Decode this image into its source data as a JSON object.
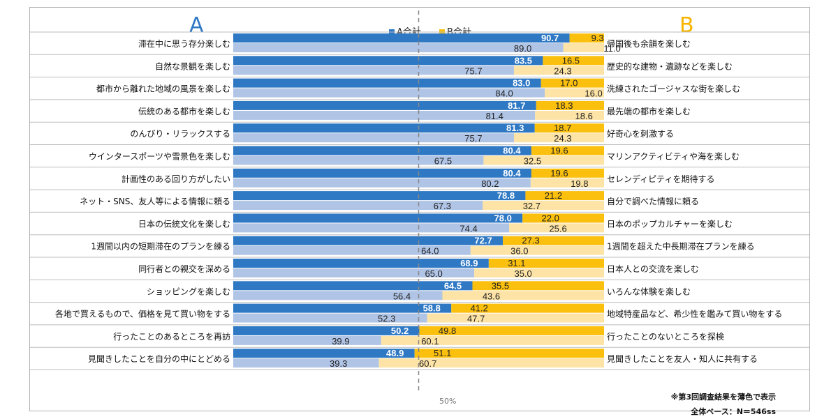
{
  "header": {
    "a": "A",
    "b": "B"
  },
  "legend": {
    "a": "A合計",
    "b": "B合計"
  },
  "axis": {
    "mid_label": "50%"
  },
  "notes": {
    "line1": "※第3回調査結果を薄色で表示",
    "line2": "全体ベース：N＝546ss"
  },
  "colors": {
    "a_current": "#2f78c4",
    "b_current": "#fbbf0d",
    "a_prev": "#b0c4e6",
    "b_prev": "#fde3a5",
    "header_a": "#2f78c4",
    "header_b": "#f7b500",
    "midline": "#888888"
  },
  "chart_data": {
    "type": "bar",
    "orientation": "horizontal-diverging",
    "xlim": [
      0,
      100
    ],
    "series": [
      {
        "name": "A合計",
        "side": "A"
      },
      {
        "name": "B合計",
        "side": "B"
      }
    ],
    "rows": [
      {
        "a_label": "滞在中に思う存分楽しむ",
        "b_label": "帰国後も余韻を楽しむ",
        "a": 90.7,
        "b": 9.3,
        "a_prev": 89.0,
        "b_prev": 11.0
      },
      {
        "a_label": "自然な景観を楽しむ",
        "b_label": "歴史的な建物・遺跡などを楽しむ",
        "a": 83.5,
        "b": 16.5,
        "a_prev": 75.7,
        "b_prev": 24.3
      },
      {
        "a_label": "都市から離れた地域の風景を楽しむ",
        "b_label": "洗練されたゴージャスな街を楽しむ",
        "a": 83.0,
        "b": 17.0,
        "a_prev": 84.0,
        "b_prev": 16.0
      },
      {
        "a_label": "伝統のある都市を楽しむ",
        "b_label": "最先端の都市を楽しむ",
        "a": 81.7,
        "b": 18.3,
        "a_prev": 81.4,
        "b_prev": 18.6
      },
      {
        "a_label": "のんびり・リラックスする",
        "b_label": "好奇心を刺激する",
        "a": 81.3,
        "b": 18.7,
        "a_prev": 75.7,
        "b_prev": 24.3
      },
      {
        "a_label": "ウインタースポーツや雪景色を楽しむ",
        "b_label": "マリンアクティビティや海を楽しむ",
        "a": 80.4,
        "b": 19.6,
        "a_prev": 67.5,
        "b_prev": 32.5
      },
      {
        "a_label": "計画性のある回り方がしたい",
        "b_label": "セレンディピティを期待する",
        "a": 80.4,
        "b": 19.6,
        "a_prev": 80.2,
        "b_prev": 19.8
      },
      {
        "a_label": "ネット・SNS、友人等による情報に頼る",
        "b_label": "自分で調べた情報に頼る",
        "a": 78.8,
        "b": 21.2,
        "a_prev": 67.3,
        "b_prev": 32.7
      },
      {
        "a_label": "日本の伝統文化を楽しむ",
        "b_label": "日本のポップカルチャーを楽しむ",
        "a": 78.0,
        "b": 22.0,
        "a_prev": 74.4,
        "b_prev": 25.6
      },
      {
        "a_label": "1週間以内の短期滞在のプランを練る",
        "b_label": "1週間を超えた中長期滞在プランを練る",
        "a": 72.7,
        "b": 27.3,
        "a_prev": 64.0,
        "b_prev": 36.0
      },
      {
        "a_label": "同行者との親交を深める",
        "b_label": "日本人との交流を楽しむ",
        "a": 68.9,
        "b": 31.1,
        "a_prev": 65.0,
        "b_prev": 35.0
      },
      {
        "a_label": "ショッピングを楽しむ",
        "b_label": "いろんな体験を楽しむ",
        "a": 64.5,
        "b": 35.5,
        "a_prev": 56.4,
        "b_prev": 43.6
      },
      {
        "a_label": "各地で買えるもので、価格を見て買い物をする",
        "b_label": "地域特産品など、希少性を鑑みて買い物をする",
        "a": 58.8,
        "b": 41.2,
        "a_prev": 52.3,
        "b_prev": 47.7
      },
      {
        "a_label": "行ったことのあるところを再訪",
        "b_label": "行ったことのないところを探検",
        "a": 50.2,
        "b": 49.8,
        "a_prev": 39.9,
        "b_prev": 60.1
      },
      {
        "a_label": "見聞きしたことを自分の中にとどめる",
        "b_label": "見聞きしたことを友人・知人に共有する",
        "a": 48.9,
        "b": 51.1,
        "a_prev": 39.3,
        "b_prev": 60.7
      }
    ]
  }
}
